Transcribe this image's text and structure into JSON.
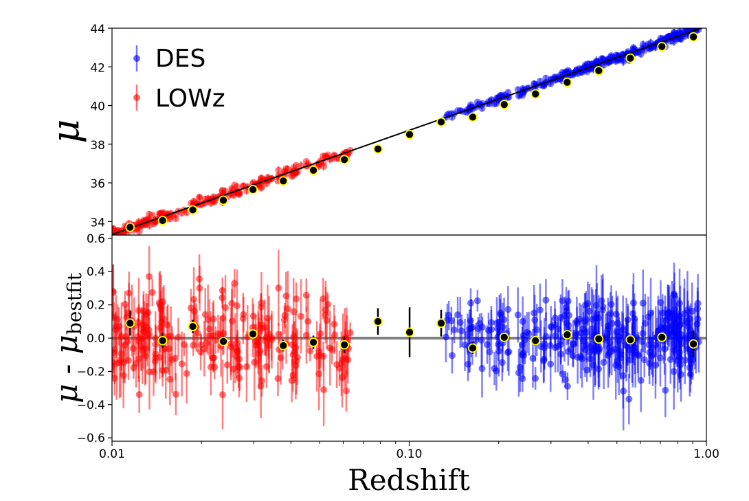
{
  "chart_data": [
    {
      "type": "scatter",
      "panel": "top",
      "ylabel": "μ",
      "xscale": "log",
      "xlim": [
        0.01,
        1.0
      ],
      "ylim": [
        33.3,
        44.0
      ],
      "yticks": [
        34,
        36,
        38,
        40,
        42,
        44
      ],
      "ytick_labels": [
        "34",
        "36",
        "38",
        "40",
        "42",
        "44"
      ],
      "legend": {
        "placement": "top-left",
        "entries": [
          "DES",
          "LOWz"
        ]
      },
      "fit_line": {
        "x": [
          0.01,
          1.0
        ],
        "y": [
          33.33,
          44.1
        ],
        "color": "#000000"
      },
      "series": [
        {
          "name": "LOWz",
          "color": "#ff0000",
          "x_range": [
            0.01,
            0.065
          ],
          "count": 230
        },
        {
          "name": "DES",
          "color": "#0000ff",
          "x_range": [
            0.13,
            0.95
          ],
          "count": 310
        },
        {
          "role": "binned",
          "color": "#000000",
          "edge": "#ffff00",
          "x": [
            0.0115,
            0.0148,
            0.0187,
            0.0237,
            0.0298,
            0.0377,
            0.0476,
            0.0605,
            0.0785,
            0.1003,
            0.1281,
            0.1636,
            0.2088,
            0.266,
            0.3401,
            0.4343,
            0.5547,
            0.7084,
            0.9046
          ],
          "y": [
            33.7,
            34.05,
            34.6,
            35.1,
            35.65,
            36.1,
            36.65,
            37.2,
            37.75,
            38.5,
            39.15,
            39.4,
            40.05,
            40.6,
            41.2,
            41.8,
            42.45,
            43.05,
            43.55
          ]
        }
      ]
    },
    {
      "type": "scatter",
      "panel": "bottom",
      "ylabel": "μ - μbestfit",
      "ylabel_main": "μ - μ",
      "ylabel_sub": "bestfit",
      "xlabel": "Redshift",
      "xscale": "log",
      "xlim": [
        0.01,
        1.0
      ],
      "ylim": [
        -0.62,
        0.62
      ],
      "xticks": [
        0.01,
        0.1,
        1.0
      ],
      "xtick_labels": [
        "0.01",
        "0.10",
        "1.00"
      ],
      "yticks": [
        -0.6,
        -0.4,
        -0.2,
        0.0,
        0.2,
        0.4,
        0.6
      ],
      "ytick_labels": [
        "−0.6",
        "−0.4",
        "−0.2",
        "0.0",
        "0.2",
        "0.4",
        "0.6"
      ],
      "zero_line": {
        "y": 0.0,
        "color": "#808080"
      },
      "series": [
        {
          "name": "LOWz",
          "color": "#ff0000",
          "x_range": [
            0.01,
            0.065
          ],
          "count": 230
        },
        {
          "name": "DES",
          "color": "#0000ff",
          "x_range": [
            0.13,
            0.95
          ],
          "count": 310
        },
        {
          "role": "binned",
          "color": "#000000",
          "edge": "#ffff00",
          "x": [
            0.0115,
            0.0148,
            0.0187,
            0.0237,
            0.0298,
            0.0377,
            0.0476,
            0.0605,
            0.0785,
            0.1003,
            0.1281,
            0.1636,
            0.2088,
            0.266,
            0.3401,
            0.4343,
            0.5547,
            0.7084,
            0.9046
          ],
          "y": [
            0.09,
            -0.015,
            0.07,
            -0.02,
            0.025,
            -0.045,
            -0.025,
            -0.04,
            0.1,
            0.035,
            0.09,
            -0.06,
            0.005,
            -0.015,
            0.02,
            -0.005,
            -0.01,
            0.005,
            -0.035
          ],
          "yerr": [
            0.075,
            0.045,
            0.04,
            0.03,
            0.03,
            0.035,
            0.04,
            0.05,
            0.08,
            0.15,
            0.08,
            0.035,
            0.03,
            0.025,
            0.025,
            0.025,
            0.025,
            0.03,
            0.08
          ]
        }
      ]
    }
  ]
}
